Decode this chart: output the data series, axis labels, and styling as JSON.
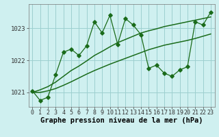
{
  "xlabel": "Graphe pression niveau de la mer (hPa)",
  "x": [
    0,
    1,
    2,
    3,
    4,
    5,
    6,
    7,
    8,
    9,
    10,
    11,
    12,
    13,
    14,
    15,
    16,
    17,
    18,
    19,
    20,
    21,
    22,
    23
  ],
  "y_main": [
    1021.05,
    1020.75,
    1020.85,
    1021.55,
    1022.25,
    1022.35,
    1022.15,
    1022.45,
    1023.2,
    1022.85,
    1023.4,
    1022.5,
    1023.3,
    1023.1,
    1022.8,
    1021.75,
    1021.85,
    1021.6,
    1021.5,
    1021.7,
    1021.8,
    1023.2,
    1023.1,
    1023.5
  ],
  "y_upper": [
    1021.0,
    1021.08,
    1021.18,
    1021.32,
    1021.5,
    1021.68,
    1021.82,
    1021.98,
    1022.15,
    1022.28,
    1022.42,
    1022.55,
    1022.65,
    1022.75,
    1022.85,
    1022.92,
    1022.98,
    1023.05,
    1023.1,
    1023.15,
    1023.2,
    1023.25,
    1023.3,
    1023.35
  ],
  "y_lower": [
    1021.0,
    1021.0,
    1021.05,
    1021.12,
    1021.22,
    1021.33,
    1021.45,
    1021.57,
    1021.68,
    1021.78,
    1021.88,
    1021.97,
    1022.06,
    1022.15,
    1022.24,
    1022.33,
    1022.4,
    1022.47,
    1022.52,
    1022.57,
    1022.62,
    1022.68,
    1022.75,
    1022.82
  ],
  "bg_color": "#cff0f0",
  "grid_color": "#9dcfcf",
  "line_color": "#1a6b1a",
  "marker": "D",
  "marker_size": 2.8,
  "ylim": [
    1020.55,
    1023.75
  ],
  "yticks": [
    1021,
    1022,
    1023
  ],
  "xticks": [
    0,
    1,
    2,
    3,
    4,
    5,
    6,
    7,
    8,
    9,
    10,
    11,
    12,
    13,
    14,
    15,
    16,
    17,
    18,
    19,
    20,
    21,
    22,
    23
  ],
  "xlabel_fontsize": 7.5,
  "tick_fontsize": 6.5
}
